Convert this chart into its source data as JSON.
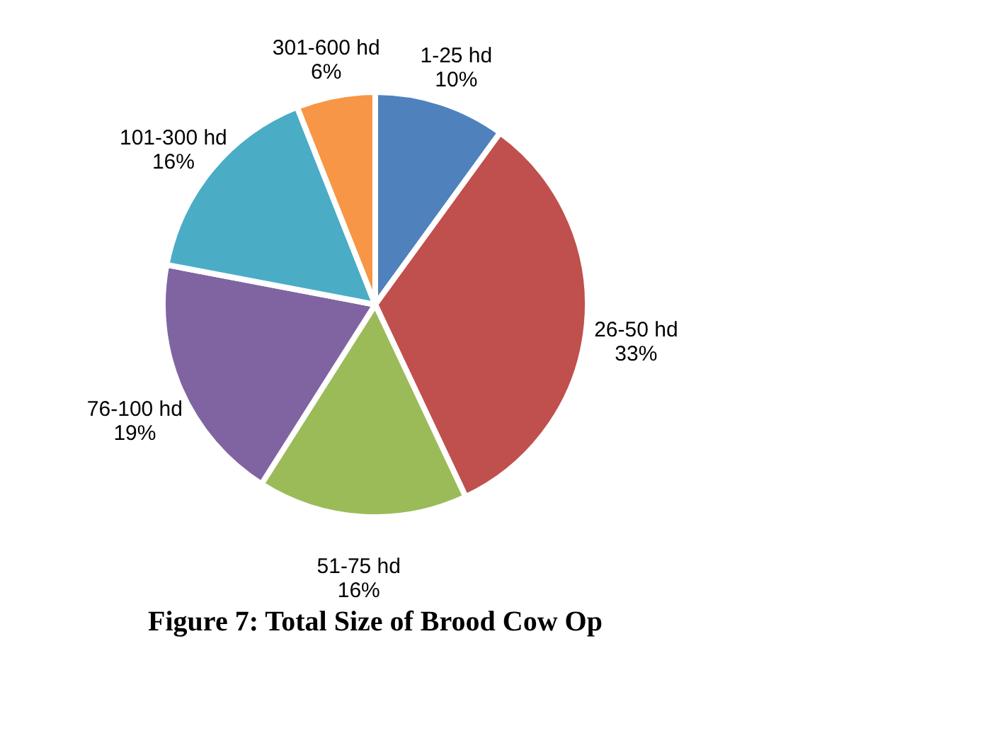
{
  "chart_data": {
    "type": "pie",
    "title": "Figure 7: Total Size of Brood Cow Op",
    "categories": [
      "1-25 hd",
      "26-50 hd",
      "51-75 hd",
      "76-100 hd",
      "101-300 hd",
      "301-600 hd"
    ],
    "values": [
      10,
      33,
      16,
      19,
      16,
      6
    ],
    "colors": [
      "#4f81bd",
      "#c0504d",
      "#9bbb59",
      "#8064a2",
      "#4bacc6",
      "#f79646"
    ],
    "value_labels": [
      "10%",
      "33%",
      "16%",
      "19%",
      "16%",
      "6%"
    ],
    "legend": false
  }
}
